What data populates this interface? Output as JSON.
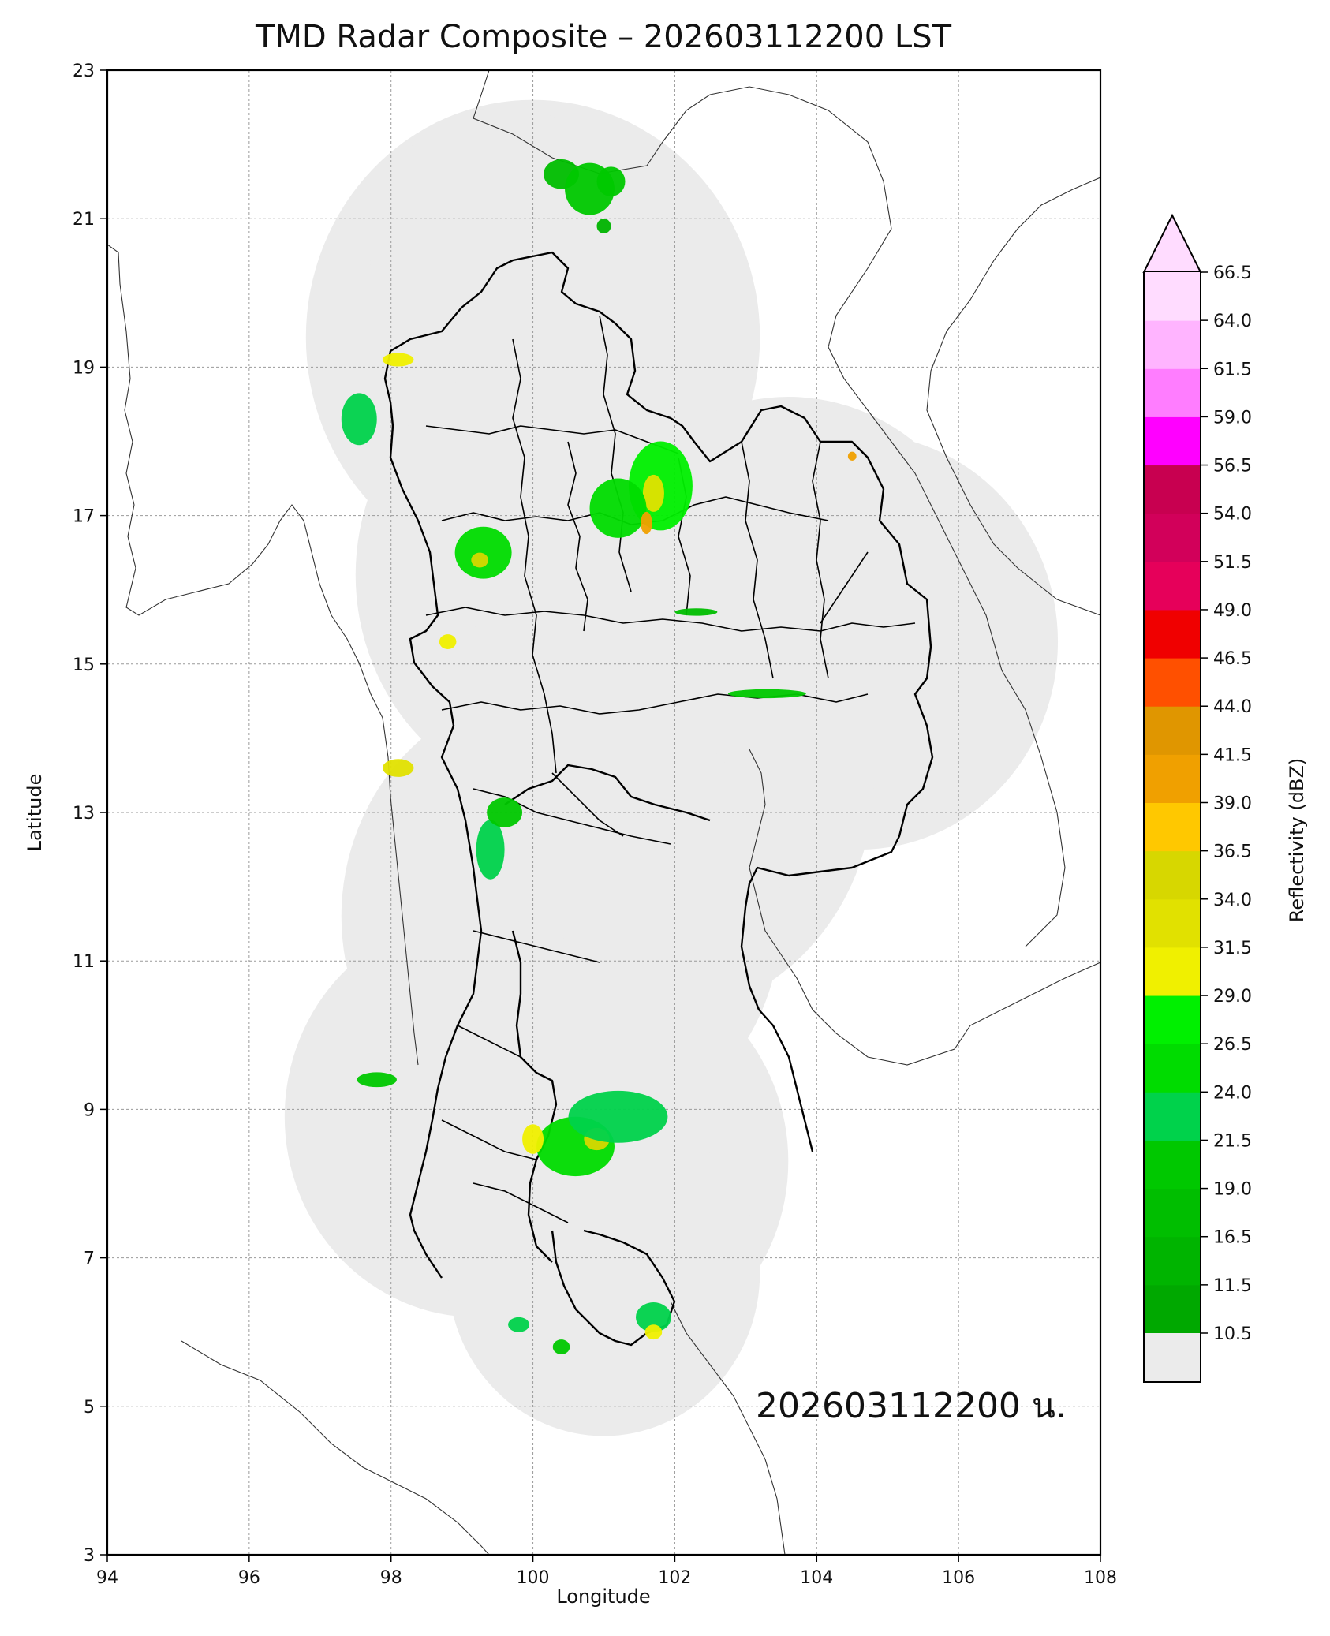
{
  "title": "TMD Radar Composite – 202603112200 LST",
  "timestamp_label": "202603112200 น.",
  "map": {
    "xlabel": "Longitude",
    "ylabel": "Latitude",
    "xlim": [
      94,
      108
    ],
    "ylim": [
      3,
      23
    ],
    "xticks": [
      "94",
      "96",
      "98",
      "100",
      "102",
      "104",
      "106",
      "108"
    ],
    "yticks": [
      "3",
      "5",
      "7",
      "9",
      "11",
      "13",
      "15",
      "17",
      "19",
      "21",
      "23"
    ],
    "grid": true,
    "coverage_color": "#ebebeb",
    "radar_coverage": [
      {
        "lon": 100.0,
        "lat": 19.4,
        "r_deg": 3.2
      },
      {
        "lon": 99.6,
        "lat": 20.6,
        "r_deg": 1.9
      },
      {
        "lon": 100.6,
        "lat": 16.2,
        "r_deg": 3.1
      },
      {
        "lon": 103.6,
        "lat": 15.7,
        "r_deg": 2.9
      },
      {
        "lon": 104.6,
        "lat": 15.3,
        "r_deg": 2.8
      },
      {
        "lon": 101.6,
        "lat": 13.4,
        "r_deg": 3.2
      },
      {
        "lon": 100.4,
        "lat": 11.6,
        "r_deg": 3.1
      },
      {
        "lon": 99.2,
        "lat": 8.9,
        "r_deg": 2.7
      },
      {
        "lon": 100.9,
        "lat": 8.3,
        "r_deg": 2.7
      },
      {
        "lon": 101.0,
        "lat": 6.8,
        "r_deg": 2.2
      }
    ],
    "echo_cells": [
      {
        "lon": 100.4,
        "lat": 21.6,
        "rx": 0.25,
        "ry": 0.2,
        "dbz": 18
      },
      {
        "lon": 100.8,
        "lat": 21.4,
        "rx": 0.35,
        "ry": 0.35,
        "dbz": 19
      },
      {
        "lon": 101.1,
        "lat": 21.5,
        "rx": 0.2,
        "ry": 0.2,
        "dbz": 20
      },
      {
        "lon": 101.0,
        "lat": 20.9,
        "rx": 0.1,
        "ry": 0.1,
        "dbz": 16
      },
      {
        "lon": 98.1,
        "lat": 19.1,
        "rx": 0.22,
        "ry": 0.09,
        "dbz": 30
      },
      {
        "lon": 97.55,
        "lat": 18.3,
        "rx": 0.25,
        "ry": 0.35,
        "dbz": 22
      },
      {
        "lon": 101.8,
        "lat": 17.4,
        "rx": 0.45,
        "ry": 0.6,
        "dbz": 28
      },
      {
        "lon": 101.7,
        "lat": 17.3,
        "rx": 0.15,
        "ry": 0.25,
        "dbz": 33
      },
      {
        "lon": 101.2,
        "lat": 17.1,
        "rx": 0.4,
        "ry": 0.4,
        "dbz": 26
      },
      {
        "lon": 101.6,
        "lat": 16.9,
        "rx": 0.08,
        "ry": 0.15,
        "dbz": 41
      },
      {
        "lon": 99.3,
        "lat": 16.5,
        "rx": 0.4,
        "ry": 0.35,
        "dbz": 26
      },
      {
        "lon": 99.25,
        "lat": 16.4,
        "rx": 0.12,
        "ry": 0.1,
        "dbz": 36
      },
      {
        "lon": 98.8,
        "lat": 15.3,
        "rx": 0.12,
        "ry": 0.1,
        "dbz": 30
      },
      {
        "lon": 103.3,
        "lat": 14.6,
        "rx": 0.55,
        "ry": 0.06,
        "dbz": 20
      },
      {
        "lon": 102.3,
        "lat": 15.7,
        "rx": 0.3,
        "ry": 0.05,
        "dbz": 18
      },
      {
        "lon": 98.1,
        "lat": 13.6,
        "rx": 0.22,
        "ry": 0.12,
        "dbz": 33
      },
      {
        "lon": 99.4,
        "lat": 12.5,
        "rx": 0.2,
        "ry": 0.4,
        "dbz": 22
      },
      {
        "lon": 99.6,
        "lat": 13.0,
        "rx": 0.25,
        "ry": 0.2,
        "dbz": 20
      },
      {
        "lon": 97.8,
        "lat": 9.4,
        "rx": 0.28,
        "ry": 0.1,
        "dbz": 20
      },
      {
        "lon": 100.6,
        "lat": 8.5,
        "rx": 0.55,
        "ry": 0.4,
        "dbz": 24
      },
      {
        "lon": 100.9,
        "lat": 8.6,
        "rx": 0.18,
        "ry": 0.15,
        "dbz": 34
      },
      {
        "lon": 101.2,
        "lat": 8.9,
        "rx": 0.7,
        "ry": 0.35,
        "dbz": 23
      },
      {
        "lon": 100.0,
        "lat": 8.6,
        "rx": 0.15,
        "ry": 0.2,
        "dbz": 30
      },
      {
        "lon": 101.7,
        "lat": 6.2,
        "rx": 0.25,
        "ry": 0.2,
        "dbz": 22
      },
      {
        "lon": 101.7,
        "lat": 6.0,
        "rx": 0.12,
        "ry": 0.1,
        "dbz": 31
      },
      {
        "lon": 99.8,
        "lat": 6.1,
        "rx": 0.15,
        "ry": 0.1,
        "dbz": 22
      },
      {
        "lon": 100.4,
        "lat": 5.8,
        "rx": 0.12,
        "ry": 0.1,
        "dbz": 20
      },
      {
        "lon": 104.5,
        "lat": 17.8,
        "rx": 0.06,
        "ry": 0.06,
        "dbz": 41
      }
    ]
  },
  "colorbar": {
    "label": "Reflectivity (dBZ)",
    "ticks": [
      "10.5",
      "11.5",
      "16.5",
      "19.0",
      "21.5",
      "24.0",
      "26.5",
      "29.0",
      "31.5",
      "34.0",
      "36.5",
      "39.0",
      "41.5",
      "44.0",
      "46.5",
      "49.0",
      "51.5",
      "54.0",
      "56.5",
      "59.0",
      "61.5",
      "64.0",
      "66.5"
    ],
    "below_color": "#ebebeb",
    "colors": [
      "#00a800",
      "#00b400",
      "#00be00",
      "#00c800",
      "#00d24b",
      "#00dc00",
      "#00f000",
      "#f0f000",
      "#e1e100",
      "#d7d700",
      "#ffc800",
      "#f0a000",
      "#e09600",
      "#ff5000",
      "#f00000",
      "#e6005a",
      "#d2005a",
      "#c80050",
      "#ff00ff",
      "#ff7dff",
      "#ffb4ff",
      "#ffdcff"
    ],
    "extend_color": "#ffdcff"
  }
}
